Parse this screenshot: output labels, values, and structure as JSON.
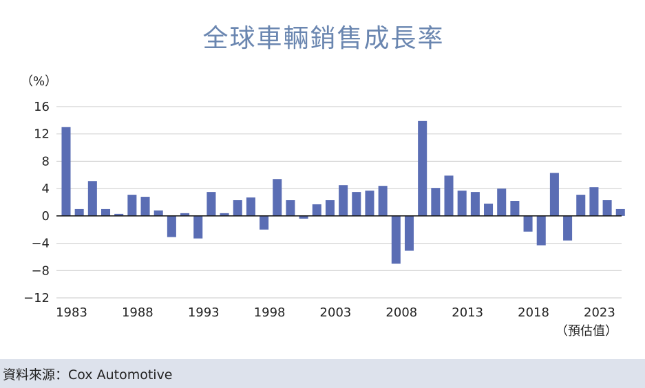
{
  "chart_data": {
    "type": "bar",
    "title": "全球車輛銷售成長率",
    "ylabel": "（%）",
    "ylim": [
      -12,
      16
    ],
    "yticks": [
      16,
      12,
      8,
      4,
      0,
      -4,
      -8,
      -12
    ],
    "ytick_labels": [
      "16",
      "12",
      "8",
      "4",
      "0",
      "−4",
      "−8",
      "−12"
    ],
    "xtick_labels": [
      "1983",
      "1988",
      "1993",
      "1998",
      "2003",
      "2008",
      "2013",
      "2018",
      "2023"
    ],
    "forecast_note": "（預估值）",
    "grid": true,
    "categories": [
      1983,
      1984,
      1985,
      1986,
      1987,
      1988,
      1989,
      1990,
      1991,
      1992,
      1993,
      1994,
      1995,
      1996,
      1997,
      1998,
      1999,
      2000,
      2001,
      2002,
      2003,
      2004,
      2005,
      2006,
      2007,
      2008,
      2009,
      2010,
      2011,
      2012,
      2013,
      2014,
      2015,
      2016,
      2017,
      2018,
      2019,
      2020,
      2021,
      2022,
      2023,
      2024,
      2025
    ],
    "values": [
      13.0,
      1.0,
      5.1,
      1.0,
      0.3,
      3.1,
      2.8,
      0.8,
      -3.1,
      0.4,
      -3.3,
      3.5,
      0.4,
      2.3,
      2.7,
      -2.0,
      5.4,
      2.3,
      -0.4,
      1.7,
      2.3,
      4.5,
      3.5,
      3.7,
      4.4,
      -7.0,
      -5.1,
      13.9,
      4.1,
      5.9,
      3.7,
      3.5,
      1.8,
      4.0,
      2.2,
      -2.3,
      -4.3,
      6.3,
      -3.6,
      3.1,
      4.2,
      2.3,
      1.0
    ],
    "color": "#5a6db4"
  },
  "source": "資料來源：Cox Automotive"
}
